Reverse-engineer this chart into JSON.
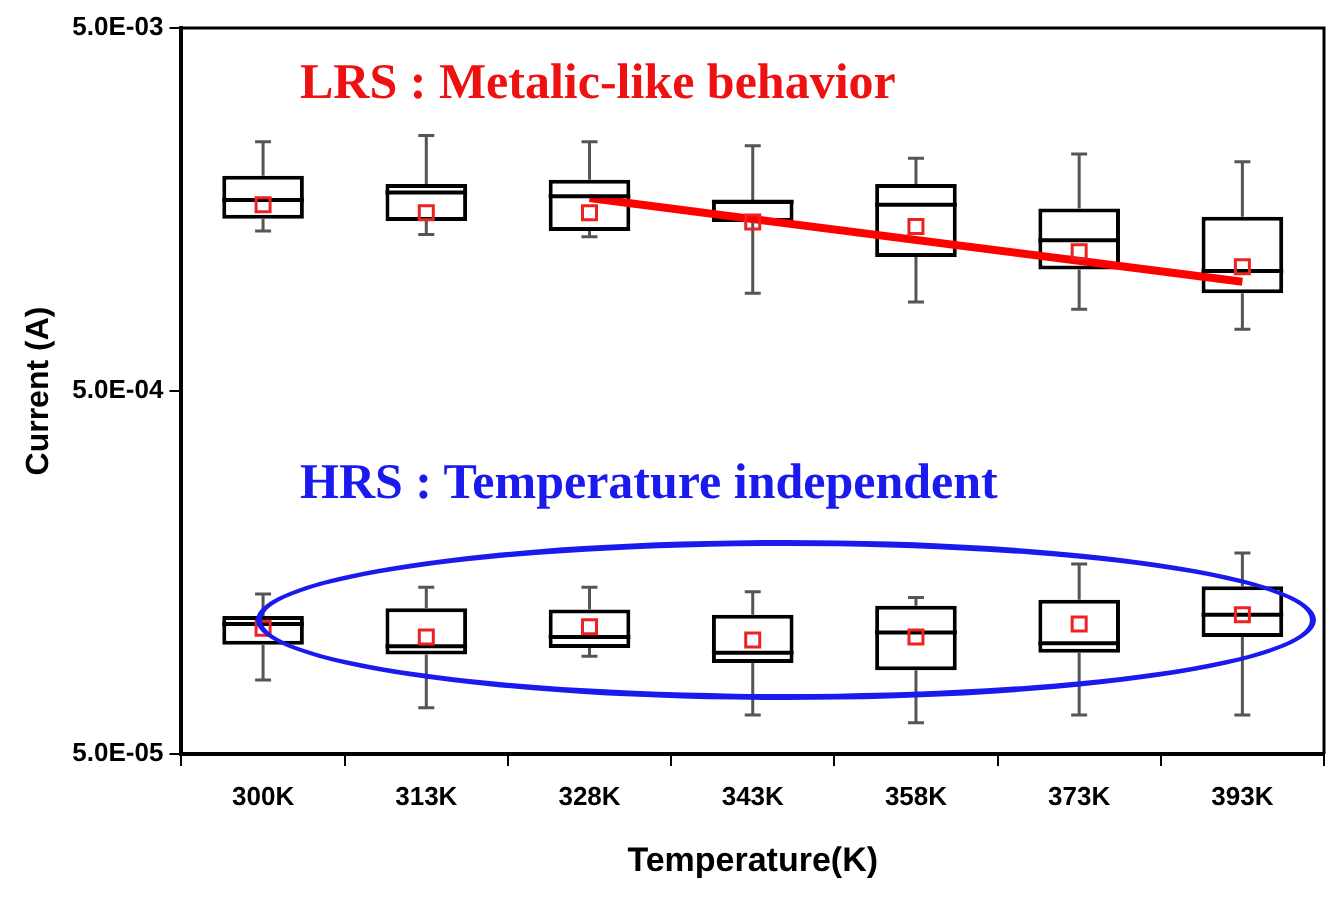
{
  "chart_data": {
    "type": "box",
    "xlabel": "Temperature(K)",
    "ylabel": "Current (A)",
    "categories": [
      "300K",
      "313K",
      "328K",
      "343K",
      "358K",
      "373K",
      "393K"
    ],
    "log": true,
    "ylim": [
      5e-05,
      0.005
    ],
    "yticks": [
      {
        "value": 5e-05,
        "label": "5.0E-05"
      },
      {
        "value": 0.0005,
        "label": "5.0E-04"
      },
      {
        "value": 0.005,
        "label": "5.0E-03"
      }
    ],
    "grid": false,
    "legend": false,
    "annotations": [
      "LRS : Metalic-like behavior",
      "HRS : Temperature independent"
    ],
    "series": [
      {
        "color": "#000000",
        "boxes": [
          {
            "low": 0.00138,
            "q1": 0.00149,
            "median": 0.00168,
            "q3": 0.00196,
            "high": 0.00243,
            "mean": 0.00163
          },
          {
            "low": 0.00135,
            "q1": 0.00147,
            "median": 0.00176,
            "q3": 0.00186,
            "high": 0.00253,
            "mean": 0.00155
          },
          {
            "low": 0.00133,
            "q1": 0.00138,
            "median": 0.00172,
            "q3": 0.00191,
            "high": 0.00243,
            "mean": 0.00155
          },
          {
            "low": 0.00093,
            "q1": 0.00146,
            "median": 0.00166,
            "q3": 0.00168,
            "high": 0.00237,
            "mean": 0.00146
          },
          {
            "low": 0.00088,
            "q1": 0.00117,
            "median": 0.00163,
            "q3": 0.00186,
            "high": 0.00219,
            "mean": 0.00142
          },
          {
            "low": 0.00084,
            "q1": 0.00108,
            "median": 0.0013,
            "q3": 0.00159,
            "high": 0.00225,
            "mean": 0.00121
          },
          {
            "low": 0.00074,
            "q1": 0.00093,
            "median": 0.00107,
            "q3": 0.00151,
            "high": 0.00214,
            "mean": 0.0011
          }
        ]
      },
      {
        "color": "#000000",
        "boxes": [
          {
            "low": 8e-05,
            "q1": 0.0001,
            "median": 0.000114,
            "q3": 0.00012,
            "high": 0.000138,
            "mean": 0.000111
          },
          {
            "low": 6.7e-05,
            "q1": 9.4e-05,
            "median": 9.9e-05,
            "q3": 0.000126,
            "high": 0.000144,
            "mean": 0.000105
          },
          {
            "low": 9.3e-05,
            "q1": 9.8e-05,
            "median": 0.000105,
            "q3": 0.000125,
            "high": 0.000144,
            "mean": 0.000112
          },
          {
            "low": 6.4e-05,
            "q1": 8.9e-05,
            "median": 9.5e-05,
            "q3": 0.000121,
            "high": 0.00014,
            "mean": 0.000103
          },
          {
            "low": 6.1e-05,
            "q1": 8.5e-05,
            "median": 0.000108,
            "q3": 0.000128,
            "high": 0.000135,
            "mean": 0.000105
          },
          {
            "low": 6.4e-05,
            "q1": 9.5e-05,
            "median": 0.000101,
            "q3": 0.000133,
            "high": 0.000167,
            "mean": 0.000114
          },
          {
            "low": 6.4e-05,
            "q1": 0.000105,
            "median": 0.000121,
            "q3": 0.000145,
            "high": 0.000179,
            "mean": 0.000121
          }
        ]
      },
      {
        "type": "line",
        "color": "#ff0000",
        "x": [
          "328K",
          "393K"
        ],
        "values": [
          0.0017,
          0.001
        ]
      }
    ]
  }
}
